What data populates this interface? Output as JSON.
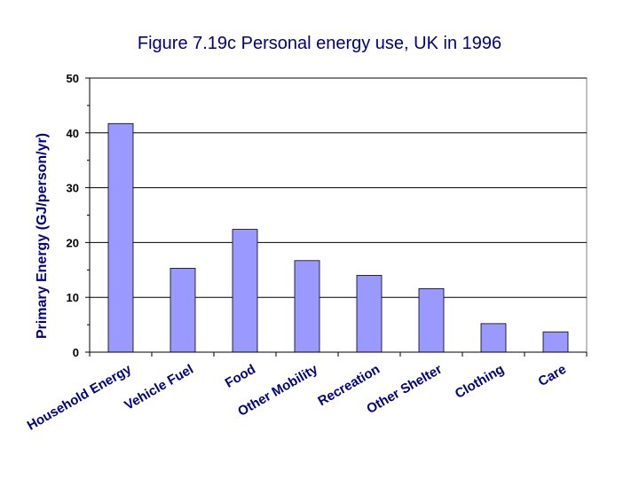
{
  "chart_data": {
    "type": "bar",
    "title": "Figure 7.19c Personal energy use, UK in 1996",
    "xlabel": "",
    "ylabel": "Primary Energy (GJ/person/yr)",
    "ylim": [
      0,
      50
    ],
    "yticks": [
      0,
      10,
      20,
      30,
      40,
      50
    ],
    "grid": true,
    "categories": [
      "Household Energy",
      "Vehicle Fuel",
      "Food",
      "Other Mobility",
      "Recreation",
      "Other Shelter",
      "Clothing",
      "Care"
    ],
    "values": [
      41.7,
      15.3,
      22.4,
      16.7,
      14.0,
      11.6,
      5.2,
      3.7
    ],
    "colors": {
      "bar": "#9999ff",
      "bar_border": "#000000",
      "title": "#000080",
      "axis_label": "#000080",
      "category_label": "#000080",
      "gridline": "#000000"
    }
  }
}
